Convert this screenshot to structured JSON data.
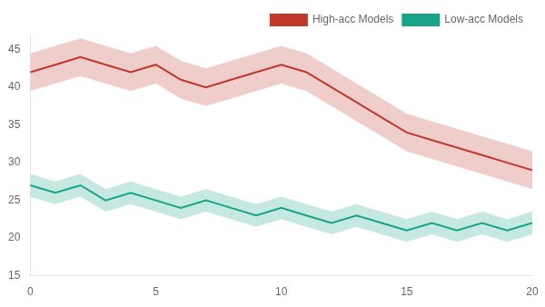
{
  "chart_data": {
    "type": "line",
    "x": [
      0,
      1,
      2,
      3,
      4,
      5,
      6,
      7,
      8,
      9,
      10,
      11,
      12,
      13,
      14,
      15,
      16,
      17,
      18,
      19,
      20
    ],
    "series": [
      {
        "name": "High-acc Models",
        "color": "#c0392b",
        "values": [
          42,
          43,
          44,
          43,
          42,
          43,
          41,
          40,
          41,
          42,
          43,
          42,
          40,
          38,
          36,
          34,
          33,
          32,
          31,
          30,
          29
        ],
        "lower": [
          39.5,
          40.5,
          41.5,
          40.5,
          39.5,
          40.5,
          38.5,
          37.5,
          38.5,
          39.5,
          40.5,
          39.5,
          37.5,
          35.5,
          33.5,
          31.5,
          30.5,
          29.5,
          28.5,
          27.5,
          26.5
        ],
        "upper": [
          44.5,
          45.5,
          46.5,
          45.5,
          44.5,
          45.5,
          43.5,
          42.5,
          43.5,
          44.5,
          45.5,
          44.5,
          42.5,
          40.5,
          38.5,
          36.5,
          35.5,
          34.5,
          33.5,
          32.5,
          31.5
        ]
      },
      {
        "name": "Low-acc Models",
        "color": "#17a589",
        "values": [
          27,
          26,
          27,
          25,
          26,
          25,
          24,
          25,
          24,
          23,
          24,
          23,
          22,
          23,
          22,
          21,
          22,
          21,
          22,
          21,
          22
        ],
        "lower": [
          25.5,
          24.5,
          25.5,
          23.5,
          24.5,
          23.5,
          22.5,
          23.5,
          22.5,
          21.5,
          22.5,
          21.5,
          20.5,
          21.5,
          20.5,
          19.5,
          20.5,
          19.5,
          20.5,
          19.5,
          20.5
        ],
        "upper": [
          28.5,
          27.5,
          28.5,
          26.5,
          27.5,
          26.5,
          25.5,
          26.5,
          25.5,
          24.5,
          25.5,
          24.5,
          23.5,
          24.5,
          23.5,
          22.5,
          23.5,
          22.5,
          23.5,
          22.5,
          23.5
        ]
      }
    ],
    "xlim": [
      0,
      20
    ],
    "xticks": [
      0,
      5,
      10,
      15,
      20
    ],
    "ylim": [
      15,
      47
    ],
    "yticks": [
      15,
      20,
      25,
      30,
      35,
      40,
      45
    ],
    "grid": false,
    "legend": "upper right"
  }
}
